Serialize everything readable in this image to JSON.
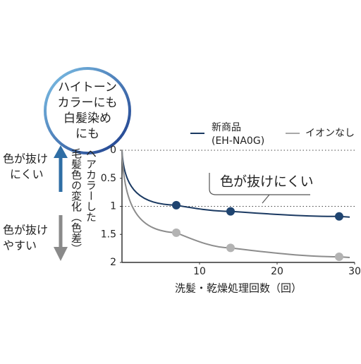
{
  "chart_data": {
    "type": "line",
    "badge": [
      "ハイトーン",
      "カラーにも",
      "白髪染め",
      "にも"
    ],
    "up_label": [
      "色が抜け",
      "にくい"
    ],
    "down_label": [
      "色が抜け",
      "やすい"
    ],
    "y_label": [
      "ヘアカラーした",
      "毛髪色の変化（色差）"
    ],
    "x_label": "洗髪・乾燥処理回数（回）",
    "annotation": "色が抜けにくい",
    "series": [
      {
        "name": [
          "新商品",
          "(EH-NA0G)"
        ],
        "color": "#1b3a62",
        "marker_color": "#1f4470",
        "x": [
          0,
          7,
          14,
          28
        ],
        "values": [
          0,
          0.98,
          1.09,
          1.18
        ]
      },
      {
        "name": "イオンなし",
        "color": "#8c8c8c",
        "marker_color": "#b3b3b3",
        "x": [
          0,
          7,
          14,
          28
        ],
        "values": [
          0,
          1.47,
          1.74,
          1.9
        ]
      }
    ],
    "xlim": [
      0,
      30
    ],
    "xticks": [
      10,
      20,
      30
    ],
    "ylim": [
      0,
      2
    ],
    "yticks": [
      0,
      0.5,
      1,
      1.5,
      2
    ],
    "y_inverted": true,
    "hlines": [
      0,
      1
    ]
  }
}
